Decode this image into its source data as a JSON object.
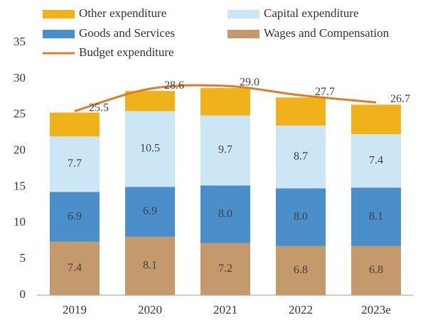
{
  "chart_data": {
    "type": "bar",
    "categories": [
      "2019",
      "2020",
      "2021",
      "2022",
      "2023e"
    ],
    "series": [
      {
        "name": "Wages and Compensation",
        "color": "#c49a6c",
        "values": [
          7.4,
          8.1,
          7.2,
          6.8,
          6.8
        ],
        "value_labels": [
          "7.4",
          "8.1",
          "7.2",
          "6.8",
          "6.8"
        ]
      },
      {
        "name": "Goods and Services",
        "color": "#4a8fc9",
        "values": [
          6.9,
          6.9,
          8.0,
          8.0,
          8.1
        ],
        "value_labels": [
          "6.9",
          "6.9",
          "8.0",
          "8.0",
          "8.1"
        ]
      },
      {
        "name": "Capital expenditure",
        "color": "#cde6f5",
        "values": [
          7.7,
          10.5,
          9.7,
          8.7,
          7.4
        ],
        "value_labels": [
          "7.7",
          "10.5",
          "9.7",
          "8.7",
          "7.4"
        ]
      },
      {
        "name": "Other expenditure",
        "color": "#f0b21a",
        "values": [
          3.3,
          2.8,
          3.8,
          3.9,
          4.1
        ]
      },
      {
        "name": "Budget expenditure",
        "type": "line",
        "color": "#e07b2a",
        "values": [
          25.5,
          28.6,
          29.0,
          27.7,
          26.7
        ],
        "value_labels": [
          "25.5",
          "28.6",
          "29.0",
          "27.7",
          "26.7"
        ]
      }
    ],
    "ylim": [
      0,
      35
    ],
    "yticks": [
      0,
      5,
      10,
      15,
      20,
      25,
      30,
      35
    ],
    "grid": false
  }
}
